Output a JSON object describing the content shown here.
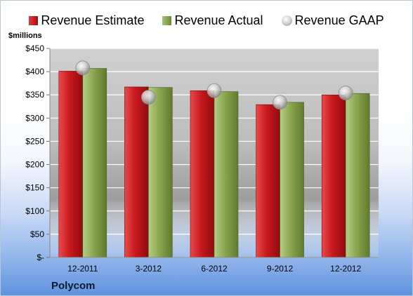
{
  "legend": {
    "estimate": "Revenue Estimate",
    "actual": "Revenue Actual",
    "gaap": "Revenue GAAP"
  },
  "units_label": "$millions",
  "company": "Polycom",
  "colors": {
    "estimate": "#c8191e",
    "actual": "#8aa64e",
    "gaap": "#bdbdbd"
  },
  "chart_data": {
    "type": "bar",
    "categories": [
      "12-2011",
      "3-2012",
      "6-2012",
      "9-2012",
      "12-2012"
    ],
    "series": [
      {
        "name": "Revenue Estimate",
        "values": [
          401,
          367,
          359,
          329,
          350
        ]
      },
      {
        "name": "Revenue Actual",
        "values": [
          407,
          366,
          357,
          334,
          353
        ]
      },
      {
        "name": "Revenue GAAP",
        "values": [
          408,
          345,
          359,
          334,
          354
        ],
        "marker": "circle"
      }
    ],
    "ylabel": "$millions",
    "ylim": [
      0,
      450
    ],
    "yticks": [
      0,
      50,
      100,
      150,
      200,
      250,
      300,
      350,
      400,
      450
    ],
    "ytick_labels": [
      "$-",
      "$50",
      "$100",
      "$150",
      "$200",
      "$250",
      "$300",
      "$350",
      "$400",
      "$450"
    ],
    "grid": true,
    "legend_position": "top"
  }
}
